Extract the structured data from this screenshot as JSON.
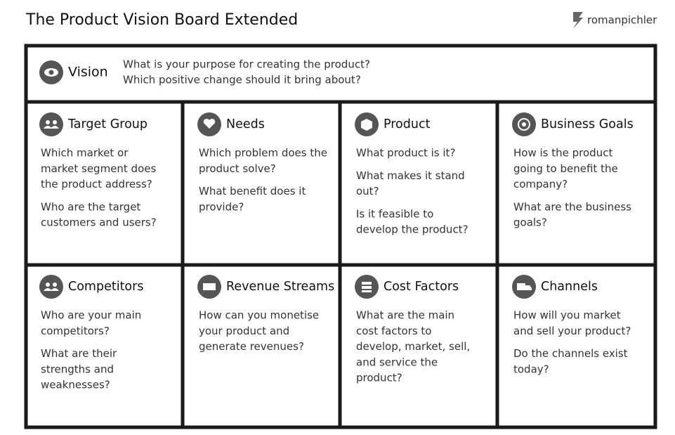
{
  "header": {
    "title": "The Product Vision Board Extended",
    "brand": "romanpichler"
  },
  "vision": {
    "label": "Vision",
    "lines": [
      "What is your purpose for creating the product?",
      "Which positive change should it bring about?"
    ]
  },
  "cells": [
    {
      "title": "Target Group",
      "paragraphs": [
        [
          "Which market or",
          "market segment does",
          "the product address?"
        ],
        [
          "Who are the target",
          "customers and users?"
        ]
      ]
    },
    {
      "title": "Needs",
      "paragraphs": [
        [
          "Which problem does the",
          "product solve?"
        ],
        [
          "What benefit does it",
          "provide?"
        ]
      ]
    },
    {
      "title": "Product",
      "paragraphs": [
        [
          "What product is it?"
        ],
        [
          "What makes it stand",
          "out?"
        ],
        [
          "Is it feasible to",
          "develop the product?"
        ]
      ]
    },
    {
      "title": "Business Goals",
      "paragraphs": [
        [
          "How is the product",
          "going to benefit the",
          "company?"
        ],
        [
          "What are the business",
          "goals?"
        ]
      ]
    },
    {
      "title": "Competitors",
      "paragraphs": [
        [
          "Who are your main",
          "competitors?"
        ],
        [
          "What are their",
          "strengths and",
          "weaknesses?"
        ]
      ]
    },
    {
      "title": "Revenue Streams",
      "paragraphs": [
        [
          "How can you monetise",
          "your product and",
          "generate revenues?"
        ]
      ]
    },
    {
      "title": "Cost Factors",
      "paragraphs": [
        [
          "What are the main",
          "cost factors to",
          "develop, market, sell,",
          "and service the",
          "product?"
        ]
      ]
    },
    {
      "title": "Channels",
      "paragraphs": [
        [
          "How will you market",
          "and sell your product?"
        ],
        [
          "Do the channels exist",
          "today?"
        ]
      ]
    }
  ]
}
